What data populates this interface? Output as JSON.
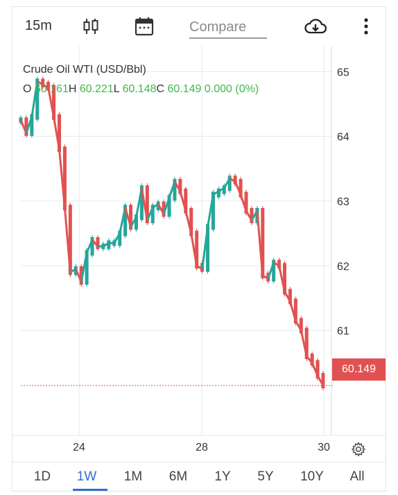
{
  "toolbar": {
    "interval": "15m",
    "compare_label": "Compare",
    "icons": [
      "candlestick-icon",
      "calendar-icon",
      "cloud-download-icon",
      "more-vert-icon"
    ]
  },
  "instrument": {
    "name": "Crude Oil WTI (USD/Bbl)",
    "ohlc": {
      "o_label": "O",
      "o": "60.161",
      "h_label": "H",
      "h": "60.221",
      "l_label": "L",
      "l": "60.148",
      "c_label": "C",
      "c": "60.149",
      "change": "0.000 (0%)"
    }
  },
  "chart_data": {
    "type": "line",
    "title": "Crude Oil WTI (USD/Bbl)",
    "xlabel": "",
    "ylabel": "",
    "x_ticks": [
      "24",
      "28",
      "30"
    ],
    "y_ticks": [
      61,
      62,
      63,
      64,
      65
    ],
    "ylim": [
      59.4,
      65.4
    ],
    "grid": true,
    "last_price": 60.149,
    "series": [
      {
        "values": [
          64.25,
          64.05,
          64.3,
          64.85,
          64.8,
          64.75,
          64.3,
          63.8,
          62.9,
          61.9,
          61.95,
          61.75,
          62.2,
          62.4,
          62.3,
          62.3,
          62.35,
          62.35,
          62.5,
          62.9,
          62.6,
          62.75,
          63.2,
          62.7,
          62.9,
          62.95,
          62.8,
          63.05,
          63.3,
          63.15,
          62.85,
          62.5,
          62.0,
          61.95,
          62.6,
          63.1,
          63.15,
          63.2,
          63.35,
          63.3,
          63.1,
          62.85,
          62.7,
          62.85,
          61.85,
          61.8,
          62.05,
          62.0,
          61.6,
          61.45,
          61.15,
          61.0,
          60.6,
          60.5,
          60.3,
          60.15
        ],
        "up_color": "#26a69a",
        "down_color": "#e25151"
      }
    ]
  },
  "price_tag": "60.149",
  "ranges": [
    "1D",
    "1W",
    "1M",
    "6M",
    "1Y",
    "5Y",
    "10Y",
    "All"
  ],
  "active_range": "1W",
  "colors": {
    "accent": "#2f6fd0",
    "up": "#26a69a",
    "down": "#e25151",
    "ohlc_values": "#3fb64a"
  }
}
